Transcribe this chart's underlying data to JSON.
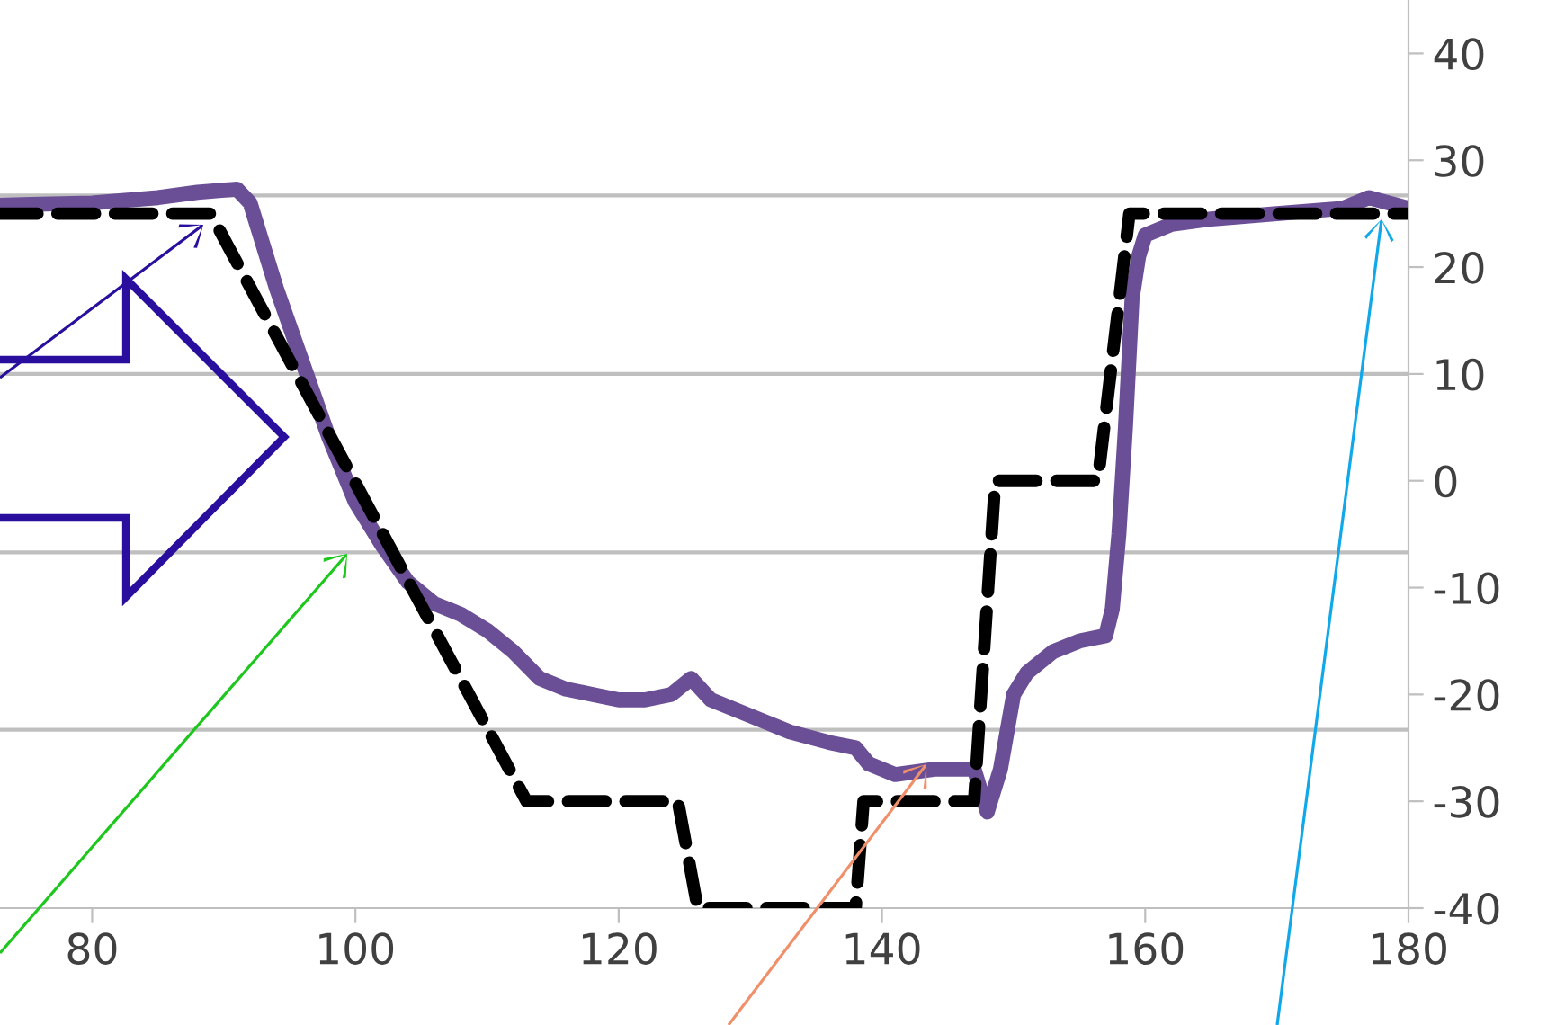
{
  "chart_data": {
    "type": "line",
    "xlim": [
      73,
      180
    ],
    "xticks": [
      80,
      100,
      120,
      140,
      160,
      180
    ],
    "ylim": [
      -40,
      45
    ],
    "yticks": [
      -40,
      -30,
      -20,
      -10,
      0,
      10,
      20,
      30,
      40
    ],
    "grid": false,
    "ref_lines": [
      {
        "axis": "y",
        "value": 26.7,
        "color": "#bfbfbf"
      },
      {
        "axis": "y",
        "value": 10,
        "color": "#bfbfbf"
      },
      {
        "axis": "y",
        "value": -6.7,
        "color": "#bfbfbf"
      },
      {
        "axis": "y",
        "value": -23.3,
        "color": "#bfbfbf"
      }
    ],
    "series": [
      {
        "color": "#6b4f96",
        "line_style": "solid",
        "x": [
          73,
          80,
          85,
          88,
          91,
          92,
          94,
          96,
          98,
          100,
          102,
          104,
          106,
          108,
          110,
          112,
          114,
          116,
          118,
          120,
          122,
          124,
          125.5,
          127,
          130,
          133,
          136,
          138,
          139,
          141,
          144,
          146,
          147,
          148,
          149,
          150,
          151,
          153,
          155,
          157,
          157.5,
          158,
          158.5,
          159,
          159.5,
          160,
          162,
          165,
          170,
          175,
          177,
          180
        ],
        "values": [
          25.8,
          26,
          26.5,
          27,
          27.3,
          26,
          18,
          11,
          4,
          -2,
          -6,
          -9.5,
          -11.5,
          -12.5,
          -14,
          -16,
          -18.5,
          -19.5,
          -20,
          -20.5,
          -20.5,
          -20,
          -18.5,
          -20.5,
          -22,
          -23.5,
          -24.5,
          -25,
          -26.5,
          -27.5,
          -27,
          -27,
          -27,
          -31,
          -27,
          -20,
          -18,
          -16,
          -15,
          -14.5,
          -12,
          -5,
          5,
          17,
          21,
          23,
          24,
          24.5,
          25,
          25.5,
          26.5,
          25.5
        ]
      },
      {
        "color": "#000000",
        "line_style": "dashed",
        "x": [
          73,
          89,
          113,
          124.5,
          126,
          138,
          138.6,
          147,
          148.6,
          156.4,
          158.8,
          180
        ],
        "values": [
          25,
          25,
          -30,
          -30,
          -40,
          -40,
          -30,
          -30,
          0,
          0,
          25,
          25
        ]
      }
    ]
  }
}
